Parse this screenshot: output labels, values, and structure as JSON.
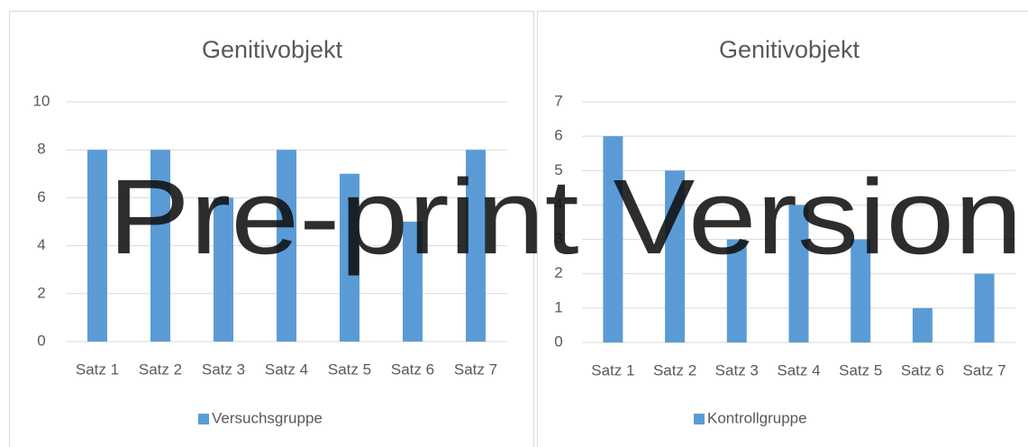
{
  "chart_data": [
    {
      "type": "bar",
      "title": "Genitivobjekt",
      "categories": [
        "Satz 1",
        "Satz 2",
        "Satz 3",
        "Satz 4",
        "Satz 5",
        "Satz 6",
        "Satz 7"
      ],
      "series": [
        {
          "name": "Versuchsgruppe",
          "color": "#5b9bd5",
          "values": [
            8,
            8,
            6,
            8,
            7,
            5,
            8
          ]
        }
      ],
      "ylim": [
        0,
        10
      ],
      "yticks": [
        0,
        2,
        4,
        6,
        8,
        10
      ],
      "grid": true,
      "legend": "bottom"
    },
    {
      "type": "bar",
      "title": "Genitivobjekt",
      "categories": [
        "Satz 1",
        "Satz 2",
        "Satz 3",
        "Satz 4",
        "Satz 5",
        "Satz 6",
        "Satz 7"
      ],
      "series": [
        {
          "name": "Kontrollgruppe",
          "color": "#5b9bd5",
          "values": [
            6,
            5,
            3,
            4,
            3,
            1,
            2
          ]
        }
      ],
      "ylim": [
        0,
        7
      ],
      "yticks": [
        0,
        1,
        2,
        3,
        4,
        5,
        6,
        7
      ],
      "grid": true,
      "legend": "bottom"
    }
  ],
  "watermark": "Pre-print Version"
}
